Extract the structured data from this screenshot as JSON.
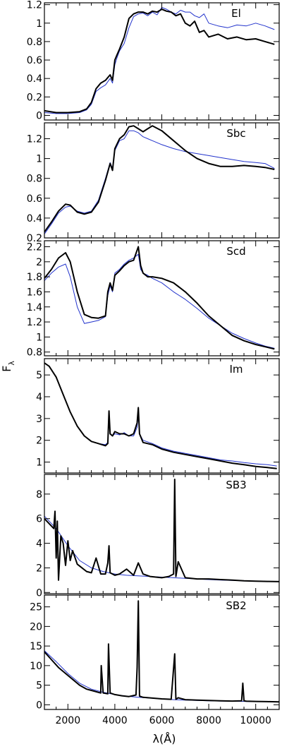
{
  "figure": {
    "xlabel": "λ(Å)",
    "ylabel": "F",
    "ylabel_sub": "λ",
    "x_ticks": [
      "2000",
      "4000",
      "6000",
      "8000",
      "10000"
    ]
  },
  "colors": {
    "observed": "#000000",
    "model": "#2233cc",
    "frame": "#000000"
  },
  "chart_data": [
    {
      "type": "line",
      "panel_label": "El",
      "xlim": [
        1000,
        11000
      ],
      "ylim": [
        -0.05,
        1.22
      ],
      "ytick_values": [
        0,
        0.2,
        0.4,
        0.6,
        0.8,
        1,
        1.2
      ],
      "yticks": [
        "0",
        "0.2",
        "0.4",
        "0.6",
        "0.8",
        "1",
        "1.2"
      ],
      "series": [
        {
          "x": [
            1000,
            1500,
            2000,
            2500,
            2800,
            3000,
            3200,
            3400,
            3600,
            3800,
            3900,
            4000,
            4100,
            4200,
            4400,
            4600,
            4800,
            5000,
            5200,
            5400,
            5600,
            5800,
            6000,
            6200,
            6400,
            6600,
            6800,
            7000,
            7200,
            7400,
            7600,
            7800,
            8000,
            8400,
            8800,
            9200,
            9600,
            10000,
            10400,
            10800
          ],
          "y": [
            0.03,
            0.02,
            0.02,
            0.03,
            0.06,
            0.12,
            0.26,
            0.3,
            0.33,
            0.4,
            0.35,
            0.55,
            0.63,
            0.7,
            0.78,
            0.95,
            1.07,
            1.1,
            1.11,
            1.08,
            1.12,
            1.09,
            1.17,
            1.15,
            1.12,
            1.1,
            1.14,
            1.12,
            1.12,
            1.08,
            1.06,
            1.1,
            1.0,
            0.97,
            0.95,
            0.98,
            0.97,
            1.0,
            0.97,
            0.93
          ]
        },
        {
          "x": [
            1000,
            1500,
            2000,
            2500,
            2800,
            3000,
            3200,
            3400,
            3600,
            3800,
            3900,
            4000,
            4100,
            4200,
            4400,
            4600,
            4800,
            5000,
            5200,
            5400,
            5600,
            5800,
            6000,
            6200,
            6400,
            6600,
            6800,
            7000,
            7200,
            7400,
            7600,
            7800,
            8000,
            8400,
            8800,
            9200,
            9600,
            10000,
            10400,
            10800
          ],
          "y": [
            0.05,
            0.03,
            0.03,
            0.04,
            0.07,
            0.14,
            0.29,
            0.35,
            0.38,
            0.44,
            0.38,
            0.6,
            0.66,
            0.72,
            0.85,
            1.05,
            1.1,
            1.12,
            1.12,
            1.1,
            1.13,
            1.12,
            1.15,
            1.13,
            1.12,
            1.08,
            1.1,
            1.0,
            0.97,
            1.02,
            0.9,
            0.92,
            0.85,
            0.88,
            0.83,
            0.85,
            0.82,
            0.83,
            0.8,
            0.77
          ]
        }
      ]
    },
    {
      "type": "line",
      "panel_label": "Sbc",
      "xlim": [
        1000,
        11000
      ],
      "ylim": [
        0.2,
        1.36
      ],
      "ytick_values": [
        0.2,
        0.4,
        0.6,
        0.8,
        1,
        1.2
      ],
      "yticks": [
        "0.2",
        "0.4",
        "0.6",
        "0.8",
        "1",
        "1.2"
      ],
      "series": [
        {
          "x": [
            1000,
            1300,
            1600,
            1900,
            2100,
            2400,
            2700,
            3000,
            3300,
            3600,
            3800,
            3900,
            4000,
            4200,
            4400,
            4600,
            4800,
            5000,
            5200,
            5400,
            5600,
            6000,
            6500,
            7000,
            7500,
            8000,
            8500,
            9000,
            9500,
            10000,
            10400,
            10800
          ],
          "y": [
            0.24,
            0.34,
            0.45,
            0.51,
            0.52,
            0.47,
            0.45,
            0.47,
            0.58,
            0.8,
            0.96,
            0.9,
            1.08,
            1.18,
            1.2,
            1.28,
            1.28,
            1.26,
            1.22,
            1.2,
            1.18,
            1.14,
            1.1,
            1.07,
            1.05,
            1.03,
            1.01,
            0.99,
            0.97,
            0.96,
            0.95,
            0.9
          ]
        },
        {
          "x": [
            1000,
            1300,
            1600,
            1900,
            2100,
            2400,
            2700,
            3000,
            3300,
            3600,
            3800,
            3900,
            4000,
            4200,
            4400,
            4600,
            4800,
            5000,
            5200,
            5400,
            5600,
            6000,
            6500,
            7000,
            7500,
            8000,
            8500,
            9000,
            9500,
            10000,
            10400,
            10800
          ],
          "y": [
            0.26,
            0.36,
            0.47,
            0.54,
            0.53,
            0.46,
            0.44,
            0.46,
            0.56,
            0.78,
            0.95,
            0.88,
            1.1,
            1.2,
            1.24,
            1.32,
            1.33,
            1.3,
            1.27,
            1.3,
            1.33,
            1.28,
            1.18,
            1.08,
            1.0,
            0.95,
            0.92,
            0.92,
            0.93,
            0.92,
            0.91,
            0.89
          ]
        }
      ]
    },
    {
      "type": "line",
      "panel_label": "Scd",
      "xlim": [
        1000,
        11000
      ],
      "ylim": [
        0.75,
        2.28
      ],
      "ytick_values": [
        0.8,
        1,
        1.2,
        1.4,
        1.6,
        1.8,
        2,
        2.2
      ],
      "yticks": [
        "0.8",
        "1",
        "1.2",
        "1.4",
        "1.6",
        "1.8",
        "2",
        "2.2"
      ],
      "series": [
        {
          "x": [
            1000,
            1300,
            1600,
            1900,
            2100,
            2400,
            2700,
            3000,
            3300,
            3600,
            3700,
            3800,
            3900,
            4000,
            4200,
            4400,
            4600,
            4800,
            5000,
            5100,
            5200,
            5400,
            5600,
            6000,
            6500,
            7000,
            7500,
            8000,
            8500,
            9000,
            9500,
            10000,
            10400,
            10800
          ],
          "y": [
            1.75,
            1.85,
            1.93,
            1.97,
            1.8,
            1.4,
            1.18,
            1.2,
            1.22,
            1.27,
            1.55,
            1.68,
            1.6,
            1.85,
            1.9,
            1.97,
            2.02,
            2.05,
            2.1,
            1.9,
            1.85,
            1.82,
            1.78,
            1.72,
            1.6,
            1.5,
            1.38,
            1.25,
            1.15,
            1.05,
            0.98,
            0.92,
            0.88,
            0.85
          ]
        },
        {
          "x": [
            1000,
            1300,
            1600,
            1900,
            2100,
            2400,
            2700,
            3000,
            3300,
            3600,
            3700,
            3800,
            3900,
            4000,
            4200,
            4400,
            4600,
            4800,
            5000,
            5100,
            5200,
            5400,
            5600,
            6000,
            6500,
            7000,
            7500,
            8000,
            8500,
            9000,
            9500,
            10000,
            10400,
            10800
          ],
          "y": [
            1.78,
            1.9,
            2.05,
            2.12,
            2.0,
            1.6,
            1.3,
            1.26,
            1.25,
            1.28,
            1.6,
            1.72,
            1.62,
            1.82,
            1.88,
            1.95,
            2.0,
            2.02,
            2.2,
            1.95,
            1.85,
            1.8,
            1.8,
            1.78,
            1.72,
            1.6,
            1.45,
            1.28,
            1.15,
            1.02,
            0.95,
            0.9,
            0.87,
            0.84
          ]
        }
      ]
    },
    {
      "type": "line",
      "panel_label": "Im",
      "xlim": [
        1000,
        11000
      ],
      "ylim": [
        0.5,
        5.75
      ],
      "ytick_values": [
        1,
        2,
        3,
        4,
        5
      ],
      "yticks": [
        "1",
        "2",
        "3",
        "4",
        "5"
      ],
      "series": [
        {
          "x": [
            1000,
            1200,
            1500,
            1800,
            2100,
            2400,
            2700,
            3000,
            3300,
            3600,
            3700,
            3750,
            3800,
            3900,
            4000,
            4200,
            4400,
            4600,
            4800,
            4950,
            5000,
            5050,
            5200,
            5600,
            6000,
            6500,
            7000,
            7500,
            8000,
            8500,
            9000,
            9500,
            10000,
            10500,
            10900
          ],
          "y": [
            5.55,
            5.4,
            4.9,
            4.1,
            3.3,
            2.65,
            2.2,
            1.95,
            1.85,
            1.8,
            1.9,
            2.9,
            2.3,
            2.2,
            2.3,
            2.25,
            2.35,
            2.2,
            2.2,
            2.6,
            3.2,
            2.3,
            2.0,
            1.85,
            1.65,
            1.5,
            1.4,
            1.3,
            1.2,
            1.1,
            1.05,
            0.98,
            0.92,
            0.88,
            0.82
          ]
        },
        {
          "x": [
            1000,
            1200,
            1500,
            1800,
            2100,
            2400,
            2700,
            3000,
            3300,
            3600,
            3700,
            3750,
            3800,
            3900,
            4000,
            4200,
            4400,
            4600,
            4800,
            4950,
            5000,
            5050,
            5200,
            5600,
            6000,
            6500,
            7000,
            7500,
            8000,
            8500,
            9000,
            9500,
            10000,
            10500,
            10900
          ],
          "y": [
            5.55,
            5.4,
            4.9,
            4.1,
            3.3,
            2.65,
            2.2,
            1.95,
            1.85,
            1.75,
            1.85,
            3.35,
            2.3,
            2.2,
            2.4,
            2.3,
            2.3,
            2.2,
            2.3,
            2.8,
            3.5,
            2.3,
            1.9,
            1.8,
            1.6,
            1.45,
            1.35,
            1.25,
            1.15,
            1.05,
            0.95,
            0.88,
            0.8,
            0.75,
            0.7
          ]
        }
      ]
    },
    {
      "type": "line",
      "panel_label": "SB3",
      "xlim": [
        1000,
        11000
      ],
      "ylim": [
        -0.1,
        9.6
      ],
      "ytick_values": [
        0,
        2,
        4,
        6,
        8
      ],
      "yticks": [
        "0",
        "2",
        "4",
        "6",
        "8"
      ],
      "series": [
        {
          "x": [
            1000,
            1500,
            2000,
            2500,
            3000,
            3500,
            4000,
            4500,
            5000,
            5500,
            6000,
            6500,
            7000,
            7500,
            8000,
            8500,
            9000,
            9500,
            10000,
            10500,
            11000
          ],
          "y": [
            6.2,
            5.2,
            3.8,
            2.6,
            2.0,
            1.7,
            1.5,
            1.4,
            1.35,
            1.3,
            1.25,
            1.2,
            1.15,
            1.1,
            1.05,
            1.0,
            0.98,
            0.95,
            0.92,
            0.9,
            0.88
          ]
        },
        {
          "x": [
            1000,
            1400,
            1450,
            1500,
            1550,
            1600,
            1700,
            1800,
            1900,
            2000,
            2100,
            2200,
            2400,
            2600,
            2800,
            3000,
            3200,
            3400,
            3600,
            3700,
            3750,
            3800,
            4000,
            4200,
            4500,
            4800,
            5000,
            5200,
            5500,
            6000,
            6300,
            6500,
            6550,
            6600,
            6700,
            7000,
            7500,
            8000,
            8500,
            9000,
            9500,
            10000,
            10500,
            11000
          ],
          "y": [
            6.0,
            5.2,
            6.6,
            2.8,
            5.8,
            1.0,
            4.6,
            4.0,
            2.2,
            4.2,
            2.6,
            3.4,
            2.3,
            2.0,
            1.7,
            1.6,
            2.8,
            1.5,
            1.5,
            2.4,
            3.8,
            1.6,
            1.4,
            1.5,
            1.9,
            1.4,
            2.4,
            1.5,
            1.3,
            1.2,
            1.3,
            1.5,
            9.2,
            1.3,
            2.5,
            1.2,
            1.1,
            1.1,
            1.05,
            1.0,
            0.95,
            0.92,
            0.9,
            0.88
          ]
        }
      ]
    },
    {
      "type": "line",
      "panel_label": "SB2",
      "xlim": [
        1000,
        11000
      ],
      "ylim": [
        -1.2,
        28.0
      ],
      "ytick_values": [
        0,
        5,
        10,
        15,
        20,
        25
      ],
      "yticks": [
        "0",
        "5",
        "10",
        "15",
        "20",
        "25"
      ],
      "series": [
        {
          "x": [
            1000,
            1500,
            2000,
            2500,
            3000,
            3500,
            4000,
            4500,
            5000,
            5500,
            6000,
            6500,
            7000,
            7500,
            8000,
            8500,
            9000,
            9500,
            10000,
            10500,
            11000
          ],
          "y": [
            13.8,
            11.0,
            8.0,
            5.5,
            4.0,
            3.2,
            2.6,
            2.2,
            1.9,
            1.7,
            1.5,
            1.3,
            1.2,
            1.1,
            1.0,
            0.95,
            0.9,
            0.85,
            0.8,
            0.78,
            0.75
          ]
        },
        {
          "x": [
            1000,
            1300,
            1600,
            1900,
            2200,
            2500,
            2800,
            3100,
            3400,
            3420,
            3500,
            3700,
            3730,
            3800,
            4000,
            4300,
            4600,
            4900,
            4950,
            5000,
            5050,
            5200,
            5600,
            6000,
            6400,
            6550,
            6600,
            6700,
            7000,
            7500,
            8000,
            8500,
            9000,
            9400,
            9450,
            9500,
            9600,
            10000,
            10500,
            11000
          ],
          "y": [
            13.5,
            11.5,
            9.5,
            8.0,
            6.5,
            5.0,
            4.0,
            3.5,
            3.0,
            10.0,
            3.0,
            2.8,
            15.5,
            3.0,
            2.6,
            2.3,
            2.1,
            2.5,
            9.5,
            26.5,
            2.2,
            1.9,
            1.7,
            1.5,
            1.4,
            13.0,
            1.4,
            1.8,
            1.3,
            1.2,
            1.1,
            1.0,
            0.95,
            1.0,
            5.5,
            1.0,
            0.9,
            0.85,
            0.8,
            0.75
          ]
        }
      ]
    }
  ]
}
